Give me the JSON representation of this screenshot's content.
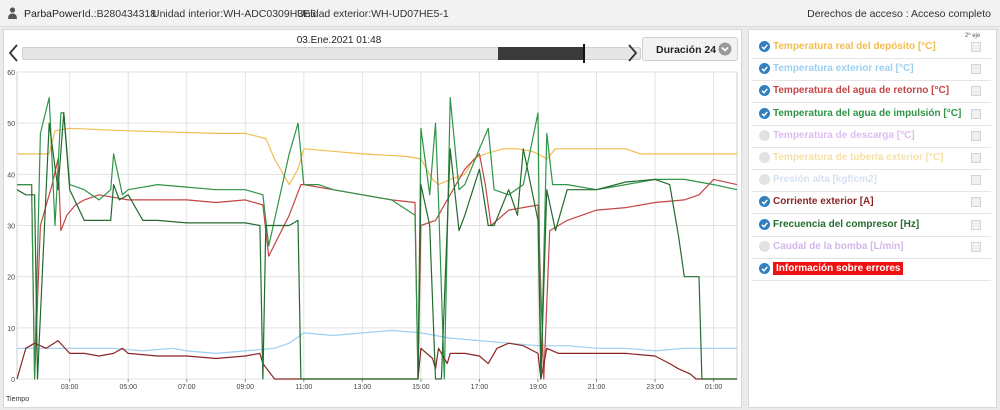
{
  "header": {
    "brand": "ParbaPower",
    "id_text": "Id.:B280434318",
    "indoor_unit": "Unidad interior:WH-ADC0309H3E5",
    "outdoor_unit": "Unidad exterior:WH-UD07HE5-1",
    "access": "Derechos de acceso : Acceso completo"
  },
  "chart_toolbar": {
    "datetime": "03.Ene.2021 01:48",
    "duration_label": "Duración 24 h",
    "timeline_window": [
      0.77,
      0.91
    ],
    "timeline_cursor": 0.91
  },
  "series_panel": {
    "axis2_header": "2º eje",
    "items": [
      {
        "label": "Temperatura real del depósito [°C]",
        "checked": true,
        "color": "#f0be50"
      },
      {
        "label": "Temperatura exterior real [°C]",
        "checked": true,
        "color": "#9cd0f2"
      },
      {
        "label": "Temperatura del agua de retorno [°C]",
        "checked": true,
        "color": "#c34646"
      },
      {
        "label": "Temperatura del agua de impulsión [°C]",
        "checked": true,
        "color": "#2f9447"
      },
      {
        "label": "Temperatura de descarga [°C]",
        "checked": false,
        "color": "#d2a6ec"
      },
      {
        "label": "Temperatura de tubería exterior [°C]",
        "checked": false,
        "color": "#f2d68c"
      },
      {
        "label": "Presión alta [kgf/cm2]",
        "checked": false,
        "color": "#c6d8ea"
      },
      {
        "label": "Corriente exterior [A]",
        "checked": true,
        "color": "#8a2626"
      },
      {
        "label": "Frecuencia del compresor [Hz]",
        "checked": true,
        "color": "#236b2e"
      },
      {
        "label": "Caudal de la bomba [L/min]",
        "checked": false,
        "color": "#c59ee6"
      },
      {
        "label": "Información sobre errores",
        "checked": true,
        "color": "#ee1111",
        "error": true
      }
    ]
  },
  "chart_data": {
    "type": "line",
    "xlabel": "Tiempo",
    "ylim": [
      0,
      60
    ],
    "yticks": [
      0,
      10,
      20,
      30,
      40,
      50,
      60
    ],
    "xlim": [
      1.2,
      25.8
    ],
    "xtick_values": [
      3,
      5,
      7,
      9,
      11,
      13,
      15,
      17,
      19,
      21,
      23,
      25
    ],
    "xtick_labels": [
      "03:00",
      "05:00",
      "07:00",
      "09:00",
      "11:00",
      "13:00",
      "15:00",
      "17:00",
      "19:00",
      "21:00",
      "23:00",
      "01:00"
    ],
    "grid": true,
    "series": [
      {
        "name": "Temperatura real del depósito [°C]",
        "color": "#f0be50",
        "x": [
          1.2,
          2.0,
          2.3,
          2.5,
          3.0,
          5.0,
          8.0,
          9.0,
          9.7,
          10.0,
          10.5,
          10.8,
          11.0,
          12.0,
          13.0,
          14.5,
          15.0,
          15.4,
          15.6,
          16.0,
          16.5,
          16.8,
          17.2,
          17.8,
          18.3,
          18.8,
          19.0,
          19.3,
          19.6,
          20.0,
          22.0,
          22.5,
          23.5,
          25.8
        ],
        "y": [
          44,
          44,
          44,
          48.5,
          49,
          48.5,
          48,
          48,
          47,
          43,
          38,
          41,
          45,
          44.5,
          44,
          43.5,
          43,
          39,
          38,
          39,
          40,
          43,
          44,
          45,
          45,
          44.5,
          44,
          43,
          45,
          45,
          45,
          44,
          44,
          44
        ]
      },
      {
        "name": "Temperatura exterior real [°C]",
        "color": "#9cd0f2",
        "x": [
          1.2,
          3.0,
          4.5,
          5.5,
          6.5,
          7.0,
          8.0,
          9.0,
          10.0,
          10.5,
          11.0,
          12.0,
          13.0,
          14.0,
          15.0,
          16.0,
          17.0,
          18.0,
          19.0,
          20.0,
          21.0,
          22.0,
          23.0,
          24.0,
          25.8
        ],
        "y": [
          6,
          6,
          6,
          5.5,
          6,
          5.5,
          5,
          5.5,
          6,
          7,
          9,
          8.5,
          9,
          9.5,
          9,
          8,
          7.5,
          7,
          6.5,
          6.5,
          6,
          6,
          5.5,
          6,
          6
        ]
      },
      {
        "name": "Temperatura del agua de retorno [°C]",
        "color": "#c34646",
        "x": [
          1.2,
          1.7,
          1.8,
          2.0,
          2.4,
          2.6,
          2.7,
          2.9,
          3.2,
          3.5,
          4.0,
          5.0,
          6.0,
          7.0,
          8.0,
          9.0,
          9.6,
          9.8,
          10.5,
          10.9,
          11.0,
          12.0,
          14.0,
          14.8,
          14.9,
          15.0,
          15.5,
          15.6,
          15.9,
          16.5,
          17.0,
          17.2,
          17.4,
          18.0,
          19.0,
          19.2,
          19.4,
          20.0,
          21.0,
          22.0,
          23.0,
          24.0,
          24.5,
          25.0,
          25.8
        ],
        "y": [
          38,
          38,
          0,
          30,
          38,
          43,
          29,
          32,
          34,
          35,
          36,
          35,
          35,
          35,
          34.5,
          35,
          34,
          24,
          32,
          38,
          38,
          37,
          35,
          34.5,
          0,
          30,
          31,
          32,
          35,
          41,
          44,
          38,
          30,
          33,
          34,
          0,
          29,
          31,
          33,
          33.5,
          34.5,
          35,
          36,
          39,
          38
        ]
      },
      {
        "name": "Temperatura del agua de impulsión [°C]",
        "color": "#2f9447",
        "x": [
          1.2,
          1.5,
          1.7,
          1.8,
          2.0,
          2.3,
          2.5,
          2.7,
          2.8,
          3.0,
          3.5,
          4.0,
          4.4,
          4.5,
          4.8,
          5.0,
          6.0,
          7.0,
          8.0,
          9.0,
          9.6,
          9.8,
          10.5,
          10.8,
          11.0,
          11.5,
          12.0,
          13.0,
          14.0,
          14.8,
          14.9,
          15.0,
          15.3,
          15.5,
          15.6,
          15.8,
          16.0,
          16.3,
          16.5,
          17.0,
          17.3,
          17.5,
          18.0,
          18.5,
          19.0,
          19.1,
          19.3,
          19.5,
          20.0,
          21.0,
          22.0,
          23.0,
          24.0,
          24.5,
          25.0,
          25.8
        ],
        "y": [
          38,
          38,
          38,
          0,
          48,
          55,
          30,
          52,
          52,
          38,
          37,
          35,
          37,
          44,
          36,
          37,
          38,
          37.5,
          37,
          37,
          36,
          26,
          44,
          50,
          38,
          38,
          37,
          36,
          35,
          32,
          0,
          49,
          36,
          50,
          35,
          0,
          55,
          37,
          38,
          45,
          49,
          37,
          36,
          38,
          52,
          0,
          48,
          38,
          38,
          37,
          38,
          39,
          39,
          38.5,
          38,
          37
        ]
      },
      {
        "name": "Corriente exterior [A]",
        "color": "#8a2626",
        "x": [
          1.2,
          1.5,
          1.8,
          2.2,
          2.6,
          3.0,
          3.5,
          4.0,
          4.5,
          4.8,
          5.0,
          6.0,
          7.0,
          8.0,
          9.0,
          9.5,
          9.6,
          10.0,
          10.5,
          10.9,
          11.0,
          12.0,
          13.0,
          14.0,
          14.8,
          14.9,
          15.0,
          15.4,
          15.5,
          15.6,
          15.9,
          16.0,
          16.5,
          17.0,
          17.3,
          17.6,
          18.0,
          18.5,
          19.0,
          19.1,
          19.3,
          19.7,
          20.0,
          21.0,
          22.0,
          23.0,
          23.5,
          23.8,
          24.2,
          24.4,
          24.6,
          25.0,
          25.8
        ],
        "y": [
          0,
          6,
          7,
          6,
          7.5,
          5,
          5,
          4.5,
          5,
          6,
          5,
          4.5,
          4.5,
          4,
          4.5,
          5,
          3,
          0,
          0,
          0,
          0,
          0,
          0,
          0,
          0,
          0,
          6,
          4,
          2,
          6,
          3,
          5,
          5,
          4.5,
          3,
          6,
          7,
          6.5,
          5,
          0,
          6,
          5,
          5,
          5,
          5,
          4.5,
          3,
          2,
          1,
          0,
          0,
          0,
          0
        ]
      },
      {
        "name": "Frecuencia del compresor [Hz]",
        "color": "#236b2e",
        "x": [
          1.2,
          1.5,
          1.8,
          1.9,
          2.3,
          2.6,
          2.8,
          3.0,
          3.5,
          4.0,
          4.4,
          4.5,
          4.7,
          5.0,
          5.5,
          6.0,
          7.0,
          8.0,
          9.0,
          9.5,
          9.6,
          9.7,
          10.0,
          10.5,
          10.8,
          10.9,
          11.0,
          12.0,
          13.0,
          14.0,
          14.8,
          14.9,
          15.0,
          15.3,
          15.5,
          15.6,
          15.7,
          16.0,
          16.3,
          16.5,
          17.0,
          17.3,
          17.5,
          18.0,
          18.3,
          18.5,
          19.0,
          19.1,
          19.3,
          19.6,
          20.0,
          21.0,
          22.0,
          23.0,
          23.5,
          23.8,
          24.0,
          24.3,
          24.5,
          24.6,
          25.0,
          25.8
        ],
        "y": [
          37,
          36,
          36,
          0,
          50,
          37,
          52,
          37,
          31,
          31,
          31,
          38,
          35,
          36,
          31,
          31,
          30.5,
          30.5,
          30.5,
          30,
          0,
          30,
          30,
          30,
          31,
          0,
          0,
          0,
          0,
          0,
          0,
          0,
          38,
          30,
          0,
          0,
          0,
          45,
          29,
          32,
          41,
          30,
          30,
          37,
          32,
          45,
          31,
          0,
          37,
          29,
          37,
          37,
          38.5,
          39,
          38,
          28,
          20,
          20,
          20,
          0,
          0,
          0
        ]
      }
    ]
  }
}
